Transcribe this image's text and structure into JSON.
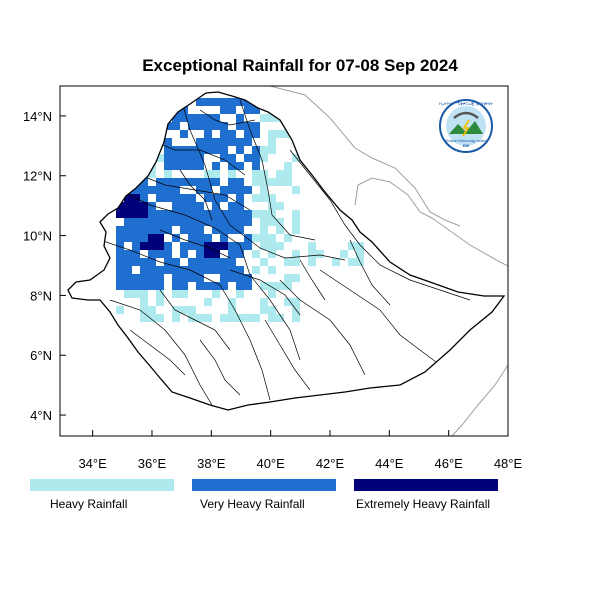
{
  "title": "Exceptional Rainfall for 07-08 Sep 2024",
  "map": {
    "lon_range": [
      32.9,
      48.0
    ],
    "lat_range": [
      3.3,
      15.0
    ],
    "lon_ticks": [
      "34°E",
      "36°E",
      "38°E",
      "40°E",
      "42°E",
      "44°E",
      "46°E",
      "48°E"
    ],
    "lat_ticks": [
      "4°N",
      "6°N",
      "8°N",
      "10°N",
      "12°N",
      "14°N"
    ],
    "country_outline_color": "#000000",
    "neighbor_border_color": "#a0a0a0"
  },
  "legend": [
    {
      "label": "Heavy Rainfall",
      "color": "#aeeaed"
    },
    {
      "label": "Very Heavy Rainfall",
      "color": "#1f6fd0"
    },
    {
      "label": "Extremely Heavy Rainfall",
      "color": "#00007a"
    }
  ],
  "logo": {
    "arc_text": "የኢትዮጵያ ሜቲዎሮሎጂ ኢንስቲትዩት",
    "name_text": "Ethiopian Meteorology Institute",
    "abbr_text": "EMI"
  }
}
